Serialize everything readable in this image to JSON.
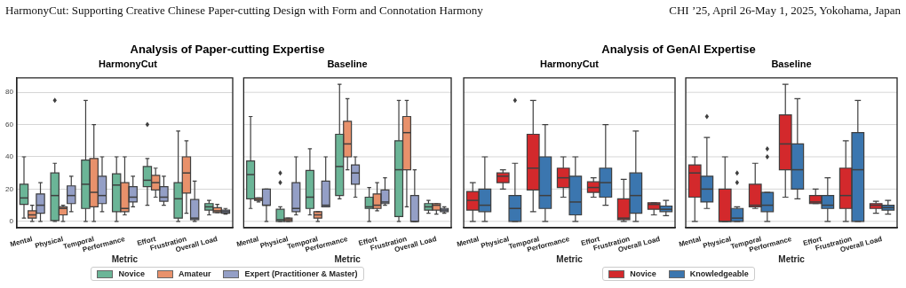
{
  "chart_data": [
    {
      "type": "box",
      "title": "Analysis of Paper-cutting Expertise",
      "subtitle": "HarmonyCut",
      "xlabel": "Metric",
      "annotations": [
        "HarmonyCut: Supporting Creative Chinese Paper-cutting Design with Form and Connotation Harmony",
        "CHI ’25, April 26-May 1, 2025, Yokohama, Japan"
      ],
      "categories": [
        "Mental",
        "Physical",
        "Temporal",
        "Performance",
        "Effort",
        "Frustration",
        "Overall Load"
      ],
      "ylim": [
        -4,
        89
      ],
      "yticks": [
        0,
        20,
        40,
        60,
        80
      ],
      "grid": "y",
      "legend": "bottom",
      "series": [
        {
          "name": "Novice",
          "color": "#6bb597",
          "boxes": [
            {
              "low": 2,
              "q1": 10.5,
              "median": 14.5,
              "q3": 23,
              "high": 40
            },
            {
              "low": 0,
              "q1": 0.5,
              "median": 16,
              "q3": 30,
              "high": 36,
              "outliers": [
                75
              ]
            },
            {
              "low": 0,
              "q1": 8,
              "median": 23,
              "q3": 38,
              "high": 75
            },
            {
              "low": 0,
              "q1": 6,
              "median": 22.5,
              "q3": 29.5,
              "high": 40
            },
            {
              "low": 10,
              "q1": 21.5,
              "median": 25.5,
              "q3": 34,
              "high": 39,
              "outliers": [
                60
              ]
            },
            {
              "low": 0,
              "q1": 2,
              "median": 14,
              "q3": 24,
              "high": 56
            },
            {
              "low": 4,
              "q1": 7,
              "median": 9,
              "q3": 11,
              "high": 13
            }
          ]
        },
        {
          "name": "Amateur",
          "color": "#e8916b",
          "boxes": [
            {
              "low": 0,
              "q1": 2,
              "median": 4,
              "q3": 6.5,
              "high": 10
            },
            {
              "low": 0,
              "q1": 4,
              "median": 8,
              "q3": 9,
              "high": 10
            },
            {
              "low": 0,
              "q1": 9,
              "median": 18,
              "q3": 39,
              "high": 60
            },
            {
              "low": 4,
              "q1": 6,
              "median": 8,
              "q3": 24,
              "high": 40
            },
            {
              "low": 15,
              "q1": 19.5,
              "median": 24,
              "q3": 28.5,
              "high": 33
            },
            {
              "low": 5,
              "q1": 17.5,
              "median": 30,
              "q3": 40,
              "high": 50
            },
            {
              "low": 5.5,
              "q1": 5.5,
              "median": 6.5,
              "q3": 8.5,
              "high": 10.5
            }
          ]
        },
        {
          "name": "Expert (Practitioner & Master)",
          "color": "#949fc6",
          "boxes": [
            {
              "low": 0,
              "q1": 5,
              "median": 10,
              "q3": 17,
              "high": 24
            },
            {
              "low": 6,
              "q1": 11,
              "median": 16,
              "q3": 22,
              "high": 28
            },
            {
              "low": 6,
              "q1": 11,
              "median": 16,
              "q3": 28,
              "high": 40
            },
            {
              "low": 9,
              "q1": 12,
              "median": 15,
              "q3": 21.5,
              "high": 28
            },
            {
              "low": 10,
              "q1": 12.5,
              "median": 15,
              "q3": 21.5,
              "high": 28
            },
            {
              "low": 0,
              "q1": 1,
              "median": 2,
              "q3": 13.5,
              "high": 25
            },
            {
              "low": 4.5,
              "q1": 5,
              "median": 6,
              "q3": 7,
              "high": 8
            }
          ]
        }
      ]
    },
    {
      "type": "box",
      "subtitle": "Baseline",
      "xlabel": "Metric",
      "categories": [
        "Mental",
        "Physical",
        "Temporal",
        "Performance",
        "Effort",
        "Frustration",
        "Overall Load"
      ],
      "ylim": [
        -4,
        89
      ],
      "yticks": [
        0,
        20,
        40,
        60,
        80
      ],
      "grid": "y",
      "tick_labels": "x",
      "series": [
        {
          "color": "#6bb597",
          "boxes": [
            {
              "low": 8,
              "q1": 14,
              "median": 29,
              "q3": 37.5,
              "high": 65
            },
            {
              "low": 0,
              "q1": 0,
              "median": 1,
              "q3": 7.5,
              "high": 9,
              "outliers": [
                30,
                24
              ]
            },
            {
              "low": 4,
              "q1": 8,
              "median": 15,
              "q3": 31.5,
              "high": 45
            },
            {
              "low": 14,
              "q1": 16,
              "median": 34,
              "q3": 54,
              "high": 85
            },
            {
              "low": 0,
              "q1": 8,
              "median": 9,
              "q3": 15,
              "high": 21
            },
            {
              "low": 0,
              "q1": 3,
              "median": 32,
              "q3": 50,
              "high": 75
            },
            {
              "low": 5,
              "q1": 7,
              "median": 9,
              "q3": 11,
              "high": 13
            }
          ]
        },
        {
          "color": "#e8916b",
          "boxes": [
            {
              "low": 12,
              "q1": 13,
              "median": 13.5,
              "q3": 14.5,
              "high": 14.5
            },
            {
              "low": 0,
              "q1": 0,
              "median": 1,
              "q3": 2,
              "high": 2
            },
            {
              "low": 0,
              "q1": 2,
              "median": 4,
              "q3": 6,
              "high": 6
            },
            {
              "low": 32,
              "q1": 40,
              "median": 48,
              "q3": 62,
              "high": 76
            },
            {
              "low": 6.5,
              "q1": 8,
              "median": 10,
              "q3": 17,
              "high": 24
            },
            {
              "low": 9,
              "q1": 32,
              "median": 55,
              "q3": 65,
              "high": 75
            },
            {
              "low": 4.5,
              "q1": 7,
              "median": 10,
              "q3": 11,
              "high": 11
            }
          ]
        },
        {
          "color": "#949fc6",
          "boxes": [
            {
              "low": 0,
              "q1": 10,
              "median": 10,
              "q3": 20,
              "high": 20
            },
            {
              "low": 4,
              "q1": 6,
              "median": 8,
              "q3": 24,
              "high": 40
            },
            {
              "low": 9,
              "q1": 9,
              "median": 10,
              "q3": 25,
              "high": 40
            },
            {
              "low": 15,
              "q1": 23,
              "median": 30,
              "q3": 35,
              "high": 40
            },
            {
              "low": 10,
              "q1": 11,
              "median": 12,
              "q3": 19.5,
              "high": 27
            },
            {
              "low": 0,
              "q1": 0,
              "median": 0,
              "q3": 16,
              "high": 32
            },
            {
              "low": 5,
              "q1": 6,
              "median": 7,
              "q3": 8,
              "high": 9
            }
          ]
        }
      ]
    },
    {
      "type": "box",
      "title": "Analysis of GenAI Expertise",
      "subtitle": "HarmonyCut",
      "xlabel": "Metric",
      "categories": [
        "Mental",
        "Physical",
        "Temporal",
        "Performance",
        "Effort",
        "Frustration",
        "Overall Load"
      ],
      "ylim": [
        -4,
        89
      ],
      "yticks": [
        0,
        20,
        40,
        60,
        80
      ],
      "grid": "y",
      "tick_labels": "x",
      "legend": "bottom",
      "series": [
        {
          "name": "Novice",
          "color": "#d3292c",
          "boxes": [
            {
              "low": 0,
              "q1": 7,
              "median": 13,
              "q3": 18.5,
              "high": 24
            },
            {
              "low": 20,
              "q1": 24,
              "median": 28,
              "q3": 30,
              "high": 32
            },
            {
              "low": 6,
              "q1": 19.5,
              "median": 33,
              "q3": 54,
              "high": 75
            },
            {
              "low": 15,
              "q1": 21,
              "median": 27,
              "q3": 33,
              "high": 40
            },
            {
              "low": 15,
              "q1": 18,
              "median": 21,
              "q3": 24.5,
              "high": 27
            },
            {
              "low": 0,
              "q1": 1,
              "median": 2,
              "q3": 14,
              "high": 26
            },
            {
              "low": 4,
              "q1": 7.5,
              "median": 10.5,
              "q3": 11.5,
              "high": 11.5
            }
          ]
        },
        {
          "name": "Knowledgeable",
          "color": "#3b76af",
          "boxes": [
            {
              "low": 0,
              "q1": 6,
              "median": 10,
              "q3": 20,
              "high": 40
            },
            {
              "low": 0,
              "q1": 0,
              "median": 8,
              "q3": 16,
              "high": 36,
              "outliers": [
                75
              ]
            },
            {
              "low": 0,
              "q1": 8,
              "median": 16,
              "q3": 40,
              "high": 60
            },
            {
              "low": 0,
              "q1": 4,
              "median": 12,
              "q3": 28,
              "high": 40
            },
            {
              "low": 10,
              "q1": 15,
              "median": 24,
              "q3": 33,
              "high": 60
            },
            {
              "low": 0,
              "q1": 5,
              "median": 16,
              "q3": 30,
              "high": 56
            },
            {
              "low": 3.5,
              "q1": 6,
              "median": 7.5,
              "q3": 9.5,
              "high": 13
            }
          ]
        }
      ]
    },
    {
      "type": "box",
      "subtitle": "Baseline",
      "xlabel": "Metric",
      "categories": [
        "Mental",
        "Physical",
        "Temporal",
        "Performance",
        "Effort",
        "Frustration",
        "Overall Load"
      ],
      "ylim": [
        -4,
        89
      ],
      "yticks": [
        0,
        20,
        40,
        60,
        80
      ],
      "grid": "y",
      "tick_labels": "x",
      "series": [
        {
          "color": "#d3292c",
          "boxes": [
            {
              "low": 0,
              "q1": 15,
              "median": 30,
              "q3": 35,
              "high": 40
            },
            {
              "low": 0,
              "q1": 0,
              "median": 0,
              "q3": 20,
              "high": 40
            },
            {
              "low": 8,
              "q1": 9,
              "median": 10,
              "q3": 23,
              "high": 36
            },
            {
              "low": 15,
              "q1": 32,
              "median": 48,
              "q3": 66,
              "high": 85
            },
            {
              "low": 11,
              "q1": 11,
              "median": 12,
              "q3": 16,
              "high": 20
            },
            {
              "low": 0,
              "q1": 8,
              "median": 16,
              "q3": 33,
              "high": 50
            },
            {
              "low": 5,
              "q1": 8,
              "median": 10,
              "q3": 11,
              "high": 12.5
            }
          ]
        },
        {
          "color": "#3b76af",
          "boxes": [
            {
              "low": 8,
              "q1": 12,
              "median": 20,
              "q3": 28,
              "high": 52,
              "outliers": [
                65
              ]
            },
            {
              "low": 0,
              "q1": 0,
              "median": 2,
              "q3": 8,
              "high": 9,
              "outliers": [
                30,
                24
              ]
            },
            {
              "low": 0,
              "q1": 6,
              "median": 10,
              "q3": 18,
              "high": 18,
              "outliers": [
                45,
                40
              ]
            },
            {
              "low": 14,
              "q1": 20,
              "median": 32,
              "q3": 48,
              "high": 76
            },
            {
              "low": 0,
              "q1": 8,
              "median": 10,
              "q3": 16,
              "high": 27
            },
            {
              "low": 0,
              "q1": 0,
              "median": 32,
              "q3": 55,
              "high": 75
            },
            {
              "low": 4.5,
              "q1": 7,
              "median": 8.5,
              "q3": 10,
              "high": 13
            }
          ]
        }
      ]
    }
  ]
}
